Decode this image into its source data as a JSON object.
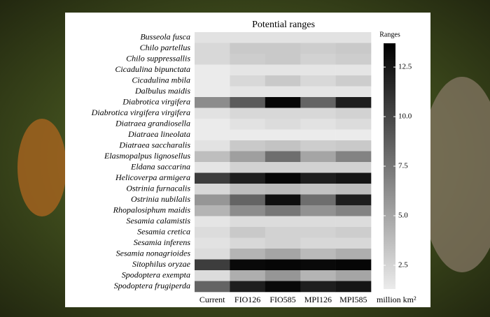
{
  "chart_data": {
    "type": "heatmap",
    "title": "Potential ranges",
    "categories": [
      "Current",
      "FIO126",
      "FIO585",
      "MPI126",
      "MPI585"
    ],
    "rows": [
      "Busseola fusca",
      "Chilo partellus",
      "Chilo suppressallis",
      "Cicadulina bipunctata",
      "Cicadulina mbila",
      "Dalbulus maidis",
      "Diabrotica virgifera",
      "Diabrotica virgifera virgifera",
      "Diatraea grandiosella",
      "Diatraea lineolata",
      "Diatraea saccharalis",
      "Elasmopalpus lignosellus",
      "Eldana saccarina",
      "Helicoverpa armigera",
      "Ostrinia furnacalis",
      "Ostrinia nubilalis",
      "Rhopalosiphum maidis",
      "Sesamia calamistis",
      "Sesamia cretica",
      "Sesamia inferens",
      "Sesamia nonagrioides",
      "Sitophilus oryzae",
      "Spodoptera exempta",
      "Spodoptera frugiperda"
    ],
    "values": [
      [
        1.8,
        1.8,
        1.8,
        1.8,
        1.8
      ],
      [
        2.3,
        3.1,
        3.1,
        2.9,
        3.1
      ],
      [
        2.3,
        2.9,
        3.1,
        2.6,
        2.9
      ],
      [
        1.3,
        1.6,
        1.6,
        1.6,
        1.6
      ],
      [
        1.3,
        2.3,
        3.1,
        2.3,
        2.9
      ],
      [
        1.3,
        1.6,
        1.6,
        1.6,
        1.6
      ],
      [
        6.3,
        8.9,
        13.4,
        8.4,
        12.1
      ],
      [
        1.8,
        2.3,
        2.3,
        2.3,
        2.6
      ],
      [
        1.3,
        1.8,
        2.1,
        1.8,
        2.1
      ],
      [
        1.3,
        1.3,
        1.3,
        1.3,
        1.3
      ],
      [
        1.8,
        3.1,
        3.4,
        2.9,
        3.1
      ],
      [
        3.7,
        5.3,
        7.9,
        5.0,
        6.8
      ],
      [
        1.6,
        2.6,
        2.6,
        2.6,
        2.6
      ],
      [
        10.5,
        12.1,
        13.4,
        12.1,
        12.6
      ],
      [
        2.3,
        3.7,
        3.9,
        3.4,
        3.7
      ],
      [
        5.8,
        8.4,
        12.9,
        7.9,
        12.1
      ],
      [
        4.2,
        6.3,
        7.4,
        6.0,
        6.8
      ],
      [
        1.6,
        2.1,
        2.1,
        2.1,
        2.1
      ],
      [
        2.1,
        3.1,
        2.6,
        2.6,
        2.9
      ],
      [
        1.8,
        2.3,
        2.6,
        2.3,
        2.3
      ],
      [
        2.1,
        4.2,
        5.0,
        3.9,
        4.5
      ],
      [
        10.5,
        13.2,
        13.4,
        13.2,
        13.4
      ],
      [
        2.1,
        4.5,
        5.8,
        4.2,
        5.0
      ],
      [
        8.4,
        12.1,
        13.2,
        12.1,
        12.6
      ]
    ],
    "colorbar_title": "Ranges",
    "colorbar_unit": "million km²",
    "zlim": [
      1.3,
      13.7
    ],
    "zticks": [
      2.5,
      {
        "value": 5,
        "label": "5.0"
      },
      {
        "value": 7.5,
        "label": "7.5"
      },
      {
        "value": 10,
        "label": "10.0"
      },
      12.5
    ],
    "colormap": [
      "#ebebeb",
      "#000000"
    ]
  }
}
